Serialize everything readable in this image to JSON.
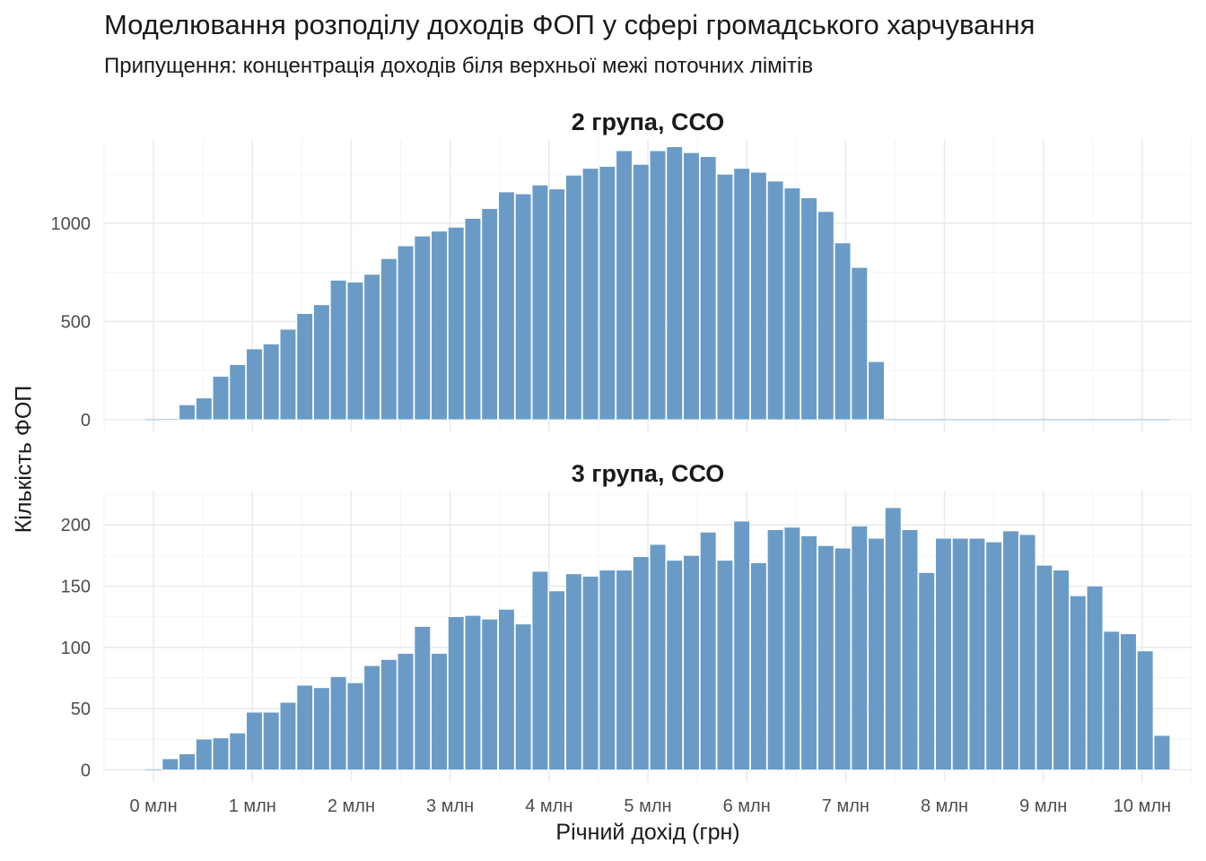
{
  "title": "Моделювання розподілу доходів ФОП у сфері громадського харчування",
  "subtitle": "Припущення: концентрація доходів біля верхньої межі поточних лімітів",
  "xlabel": "Річний дохід (грн)",
  "ylabel": "Кількість ФОП",
  "colors": {
    "bar": "#6a9bc6",
    "grid_major": "#ebebeb",
    "grid_minor": "#f4f4f4"
  },
  "chart_data": [
    {
      "type": "bar",
      "facet": "2 група, ССО",
      "x_tick_labels": [
        "0 млн",
        "1 млн",
        "2 млн",
        "3 млн",
        "4 млн",
        "5 млн",
        "6 млн",
        "7 млн",
        "8 млн",
        "9 млн",
        "10 млн"
      ],
      "x_ticks": [
        0,
        1,
        2,
        3,
        4,
        5,
        6,
        7,
        8,
        9,
        10
      ],
      "xlim": [
        -0.5,
        10.5
      ],
      "bin_width": 0.17,
      "first_bin_center": 0,
      "y_ticks": [
        0,
        500,
        1000
      ],
      "y_tick_labels": [
        "0",
        "500",
        "1000"
      ],
      "ylim": [
        -60,
        1430
      ],
      "values": [
        0,
        5,
        75,
        110,
        220,
        280,
        360,
        385,
        460,
        540,
        585,
        710,
        700,
        740,
        820,
        885,
        935,
        960,
        980,
        1025,
        1075,
        1160,
        1150,
        1195,
        1175,
        1245,
        1280,
        1290,
        1370,
        1300,
        1370,
        1390,
        1360,
        1340,
        1250,
        1280,
        1260,
        1215,
        1180,
        1130,
        1060,
        900,
        775,
        295,
        0,
        0,
        0,
        0,
        0,
        0,
        0,
        0,
        0,
        0,
        0,
        0,
        0,
        0,
        0,
        0,
        0
      ]
    },
    {
      "type": "bar",
      "facet": "3 група, ССО",
      "x_tick_labels": [
        "0 млн",
        "1 млн",
        "2 млн",
        "3 млн",
        "4 млн",
        "5 млн",
        "6 млн",
        "7 млн",
        "8 млн",
        "9 млн",
        "10 млн"
      ],
      "x_ticks": [
        0,
        1,
        2,
        3,
        4,
        5,
        6,
        7,
        8,
        9,
        10
      ],
      "xlim": [
        -0.5,
        10.5
      ],
      "bin_width": 0.17,
      "first_bin_center": 0,
      "y_ticks": [
        0,
        50,
        100,
        150,
        200
      ],
      "y_tick_labels": [
        "0",
        "50",
        "100",
        "150",
        "200"
      ],
      "ylim": [
        -10,
        228
      ],
      "values": [
        0,
        9,
        13,
        25,
        26,
        30,
        47,
        47,
        55,
        69,
        67,
        76,
        71,
        85,
        90,
        95,
        117,
        95,
        125,
        126,
        123,
        131,
        119,
        162,
        146,
        160,
        158,
        163,
        163,
        174,
        184,
        171,
        175,
        194,
        171,
        203,
        169,
        196,
        198,
        191,
        183,
        181,
        199,
        189,
        214,
        196,
        161,
        189,
        189,
        189,
        186,
        195,
        192,
        167,
        163,
        142,
        150,
        113,
        111,
        97,
        28
      ]
    }
  ]
}
